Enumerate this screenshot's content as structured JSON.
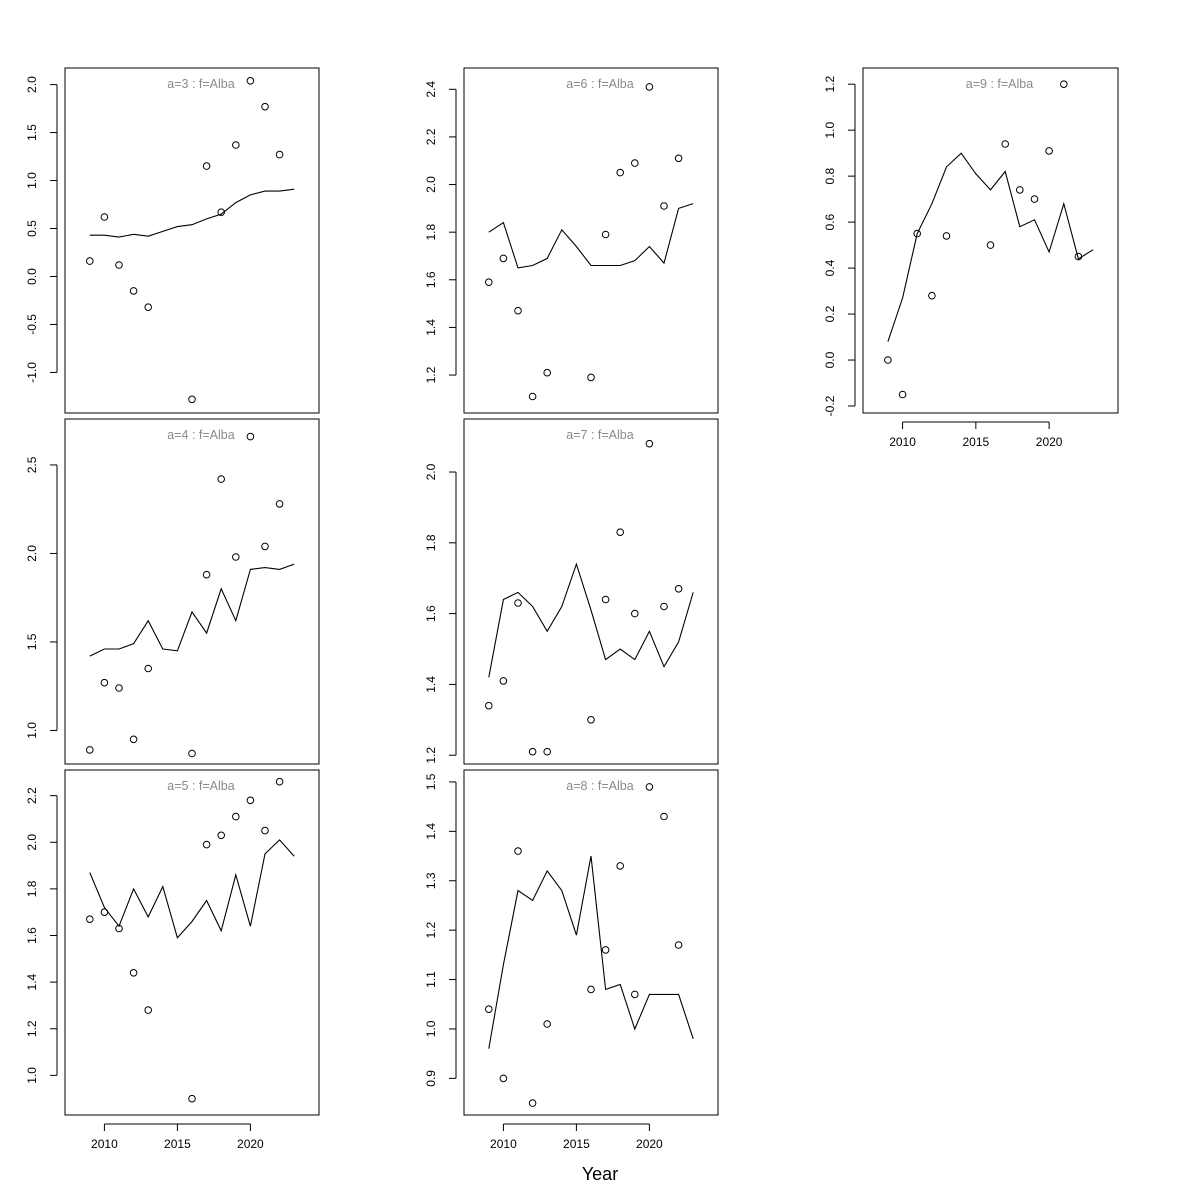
{
  "figure": {
    "xlabel": "Year"
  },
  "chart_data": [
    {
      "type": "line",
      "title": "a=3  :  f=Alba",
      "ylim": [
        -1.35,
        2.1
      ],
      "yticks": [
        -1.0,
        -0.5,
        0.0,
        0.5,
        1.0,
        1.5,
        2.0
      ],
      "ytick_labels": [
        "-1.0",
        "-0.5",
        "0.0",
        "0.5",
        "1.0",
        "1.5",
        "2.0"
      ],
      "xlim": [
        2007.3,
        2024.7
      ],
      "xticks": [
        2010,
        2015,
        2020
      ],
      "xtick_labels": [
        "2010",
        "2015",
        "2020"
      ],
      "show_xaxis": false,
      "series": [
        {
          "kind": "line",
          "x": [
            2009,
            2010,
            2011,
            2012,
            2013,
            2014,
            2015,
            2016,
            2017,
            2018,
            2019,
            2020,
            2021,
            2022,
            2023
          ],
          "y": [
            0.43,
            0.43,
            0.41,
            0.44,
            0.42,
            0.47,
            0.52,
            0.54,
            0.6,
            0.65,
            0.77,
            0.85,
            0.89,
            0.89,
            0.91
          ]
        },
        {
          "kind": "points",
          "x": [
            2009,
            2010,
            2011,
            2012,
            2013,
            2016,
            2017,
            2018,
            2019,
            2020,
            2021,
            2022
          ],
          "y": [
            0.16,
            0.62,
            0.12,
            -0.15,
            -0.32,
            -1.28,
            1.15,
            0.67,
            1.37,
            2.04,
            1.77,
            1.27
          ]
        }
      ]
    },
    {
      "type": "line",
      "title": "a=4  :  f=Alba",
      "ylim": [
        0.85,
        2.72
      ],
      "yticks": [
        1.0,
        1.5,
        2.0,
        2.5
      ],
      "ytick_labels": [
        "1.0",
        "1.5",
        "2.0",
        "2.5"
      ],
      "xlim": [
        2007.3,
        2024.7
      ],
      "xticks": [
        2010,
        2015,
        2020
      ],
      "xtick_labels": [
        "2010",
        "2015",
        "2020"
      ],
      "show_xaxis": false,
      "series": [
        {
          "kind": "line",
          "x": [
            2009,
            2010,
            2011,
            2012,
            2013,
            2014,
            2015,
            2016,
            2017,
            2018,
            2019,
            2020,
            2021,
            2022,
            2023
          ],
          "y": [
            1.42,
            1.46,
            1.46,
            1.49,
            1.62,
            1.46,
            1.45,
            1.67,
            1.55,
            1.8,
            1.62,
            1.91,
            1.92,
            1.91,
            1.94
          ]
        },
        {
          "kind": "points",
          "x": [
            2009,
            2010,
            2011,
            2012,
            2013,
            2016,
            2017,
            2018,
            2019,
            2020,
            2021,
            2022
          ],
          "y": [
            0.89,
            1.27,
            1.24,
            0.95,
            1.35,
            0.87,
            1.88,
            2.42,
            1.98,
            2.66,
            2.04,
            2.28
          ]
        }
      ]
    },
    {
      "type": "line",
      "title": "a=5  :  f=Alba",
      "ylim": [
        0.86,
        2.28
      ],
      "yticks": [
        1.0,
        1.2,
        1.4,
        1.6,
        1.8,
        2.0,
        2.2
      ],
      "ytick_labels": [
        "1.0",
        "1.2",
        "1.4",
        "1.6",
        "1.8",
        "2.0",
        "2.2"
      ],
      "xlim": [
        2007.3,
        2024.7
      ],
      "xticks": [
        2010,
        2015,
        2020
      ],
      "xtick_labels": [
        "2010",
        "2015",
        "2020"
      ],
      "show_xaxis": true,
      "series": [
        {
          "kind": "line",
          "x": [
            2009,
            2010,
            2011,
            2012,
            2013,
            2014,
            2015,
            2016,
            2017,
            2018,
            2019,
            2020,
            2021,
            2022,
            2023
          ],
          "y": [
            1.87,
            1.72,
            1.64,
            1.8,
            1.68,
            1.81,
            1.59,
            1.66,
            1.75,
            1.62,
            1.86,
            1.64,
            1.95,
            2.01,
            1.94
          ]
        },
        {
          "kind": "points",
          "x": [
            2009,
            2010,
            2011,
            2012,
            2013,
            2016,
            2017,
            2018,
            2019,
            2020,
            2021,
            2022
          ],
          "y": [
            1.67,
            1.7,
            1.63,
            1.44,
            1.28,
            0.9,
            1.99,
            2.03,
            2.11,
            2.18,
            2.05,
            2.26
          ]
        }
      ]
    },
    {
      "type": "line",
      "title": "a=6  :  f=Alba",
      "ylim": [
        1.07,
        2.46
      ],
      "yticks": [
        1.2,
        1.4,
        1.6,
        1.8,
        2.0,
        2.2,
        2.4
      ],
      "ytick_labels": [
        "1.2",
        "1.4",
        "1.6",
        "1.8",
        "2.0",
        "2.2",
        "2.4"
      ],
      "xlim": [
        2007.3,
        2024.7
      ],
      "xticks": [
        2010,
        2015,
        2020
      ],
      "xtick_labels": [
        "2010",
        "2015",
        "2020"
      ],
      "show_xaxis": false,
      "series": [
        {
          "kind": "line",
          "x": [
            2009,
            2010,
            2011,
            2012,
            2013,
            2014,
            2015,
            2016,
            2017,
            2018,
            2019,
            2020,
            2021,
            2022,
            2023
          ],
          "y": [
            1.8,
            1.84,
            1.65,
            1.66,
            1.69,
            1.81,
            1.74,
            1.66,
            1.66,
            1.66,
            1.68,
            1.74,
            1.67,
            1.9,
            1.92
          ]
        },
        {
          "kind": "points",
          "x": [
            2009,
            2010,
            2011,
            2012,
            2013,
            2016,
            2017,
            2018,
            2019,
            2020,
            2021,
            2022
          ],
          "y": [
            1.59,
            1.69,
            1.47,
            1.11,
            1.21,
            1.19,
            1.79,
            2.05,
            2.09,
            2.41,
            1.91,
            2.11
          ]
        }
      ]
    },
    {
      "type": "line",
      "title": "a=7  :  f=Alba",
      "ylim": [
        1.195,
        2.13
      ],
      "yticks": [
        1.2,
        1.4,
        1.6,
        1.8,
        2.0
      ],
      "ytick_labels": [
        "1.2",
        "1.4",
        "1.6",
        "1.8",
        "2.0"
      ],
      "xlim": [
        2007.3,
        2024.7
      ],
      "xticks": [
        2010,
        2015,
        2020
      ],
      "xtick_labels": [
        "2010",
        "2015",
        "2020"
      ],
      "show_xaxis": false,
      "series": [
        {
          "kind": "line",
          "x": [
            2009,
            2010,
            2011,
            2012,
            2013,
            2014,
            2015,
            2016,
            2017,
            2018,
            2019,
            2020,
            2021,
            2022,
            2023
          ],
          "y": [
            1.42,
            1.64,
            1.66,
            1.62,
            1.55,
            1.62,
            1.74,
            1.61,
            1.47,
            1.5,
            1.47,
            1.55,
            1.45,
            1.52,
            1.66
          ]
        },
        {
          "kind": "points",
          "x": [
            2009,
            2010,
            2011,
            2012,
            2013,
            2016,
            2017,
            2018,
            2019,
            2020,
            2021,
            2022
          ],
          "y": [
            1.34,
            1.41,
            1.63,
            1.21,
            1.21,
            1.3,
            1.64,
            1.83,
            1.6,
            2.08,
            1.62,
            1.67
          ]
        }
      ]
    },
    {
      "type": "line",
      "title": "a=8  :  f=Alba",
      "ylim": [
        0.84,
        1.51
      ],
      "yticks": [
        0.9,
        1.0,
        1.1,
        1.2,
        1.3,
        1.4,
        1.5
      ],
      "ytick_labels": [
        "0.9",
        "1.0",
        "1.1",
        "1.2",
        "1.3",
        "1.4",
        "1.5"
      ],
      "xlim": [
        2007.3,
        2024.7
      ],
      "xticks": [
        2010,
        2015,
        2020
      ],
      "xtick_labels": [
        "2010",
        "2015",
        "2020"
      ],
      "show_xaxis": true,
      "series": [
        {
          "kind": "line",
          "x": [
            2009,
            2010,
            2011,
            2012,
            2013,
            2014,
            2015,
            2016,
            2017,
            2018,
            2019,
            2020,
            2021,
            2022,
            2023
          ],
          "y": [
            0.96,
            1.13,
            1.28,
            1.26,
            1.32,
            1.28,
            1.19,
            1.35,
            1.08,
            1.09,
            1.0,
            1.07,
            1.07,
            1.07,
            0.98
          ]
        },
        {
          "kind": "points",
          "x": [
            2009,
            2010,
            2011,
            2012,
            2013,
            2016,
            2017,
            2018,
            2019,
            2020,
            2021,
            2022
          ],
          "y": [
            1.04,
            0.9,
            1.36,
            0.85,
            1.01,
            1.08,
            1.16,
            1.33,
            1.07,
            1.49,
            1.43,
            1.17
          ]
        }
      ]
    },
    {
      "type": "line",
      "title": "a=9  :  f=Alba",
      "ylim": [
        -0.2,
        1.24
      ],
      "yticks": [
        -0.2,
        0.0,
        0.2,
        0.4,
        0.6,
        0.8,
        1.0,
        1.2
      ],
      "ytick_labels": [
        "-0.2",
        "0.0",
        "0.2",
        "0.4",
        "0.6",
        "0.8",
        "1.0",
        "1.2"
      ],
      "xlim": [
        2007.3,
        2024.7
      ],
      "xticks": [
        2010,
        2015,
        2020
      ],
      "xtick_labels": [
        "2010",
        "2015",
        "2020"
      ],
      "show_xaxis": true,
      "series": [
        {
          "kind": "line",
          "x": [
            2009,
            2010,
            2011,
            2012,
            2013,
            2014,
            2015,
            2016,
            2017,
            2018,
            2019,
            2020,
            2021,
            2022,
            2023
          ],
          "y": [
            0.08,
            0.27,
            0.55,
            0.68,
            0.84,
            0.9,
            0.81,
            0.74,
            0.82,
            0.58,
            0.61,
            0.47,
            0.68,
            0.44,
            0.48
          ]
        },
        {
          "kind": "points",
          "x": [
            2009,
            2010,
            2011,
            2012,
            2013,
            2016,
            2017,
            2018,
            2019,
            2020,
            2021,
            2022
          ],
          "y": [
            0.0,
            -0.15,
            0.55,
            0.28,
            0.54,
            0.5,
            0.94,
            0.74,
            0.7,
            0.91,
            1.2,
            0.45
          ]
        }
      ]
    }
  ]
}
